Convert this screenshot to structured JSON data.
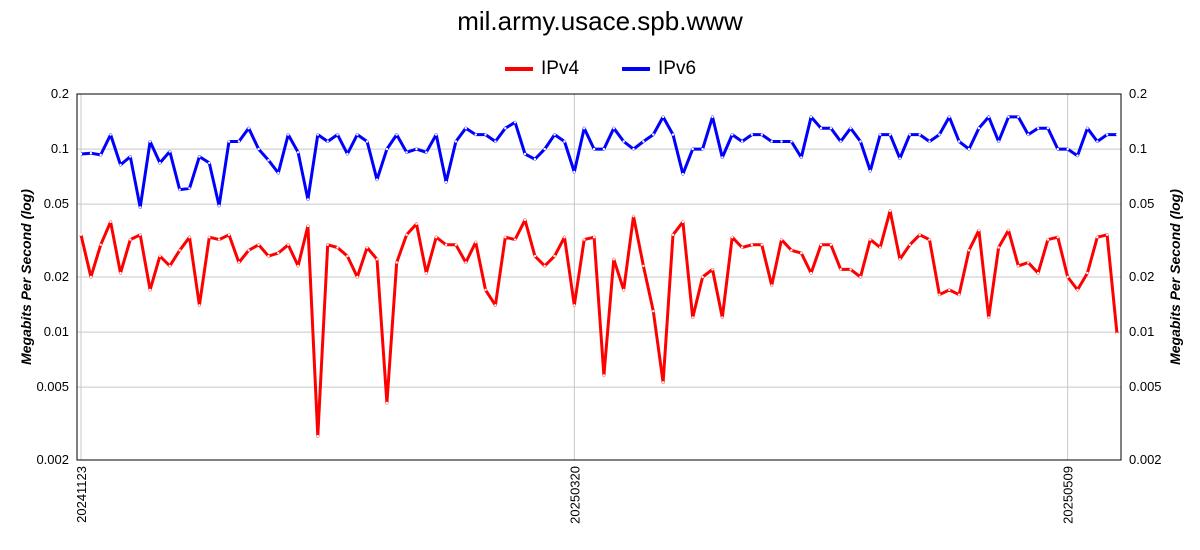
{
  "chart_data": {
    "type": "line",
    "title": "mil.army.usace.spb.www",
    "ylabel": "Megabits Per Second (log)",
    "xlabel": "",
    "yscale": "log",
    "ylim": [
      0.002,
      0.2
    ],
    "yticks": [
      0.002,
      0.005,
      0.01,
      0.02,
      0.05,
      0.1,
      0.2
    ],
    "ytick_labels": [
      "0.002",
      "0.005",
      "0.01",
      "0.02",
      "0.05",
      "0.1",
      "0.2"
    ],
    "xticks": [
      {
        "index": 0,
        "label": "20241123"
      },
      {
        "index": 50,
        "label": "20250320"
      },
      {
        "index": 100,
        "label": "20250509"
      }
    ],
    "grid": true,
    "legend": "top-center",
    "series": [
      {
        "name": "IPv4",
        "color": "#ff0000",
        "values": [
          0.034,
          0.02,
          0.03,
          0.04,
          0.021,
          0.032,
          0.034,
          0.017,
          0.026,
          0.023,
          0.028,
          0.033,
          0.014,
          0.033,
          0.032,
          0.034,
          0.024,
          0.028,
          0.03,
          0.026,
          0.027,
          0.03,
          0.023,
          0.038,
          0.0027,
          0.03,
          0.029,
          0.026,
          0.02,
          0.029,
          0.025,
          0.0041,
          0.024,
          0.034,
          0.039,
          0.021,
          0.033,
          0.03,
          0.03,
          0.024,
          0.031,
          0.017,
          0.014,
          0.033,
          0.032,
          0.041,
          0.026,
          0.023,
          0.026,
          0.033,
          0.014,
          0.032,
          0.033,
          0.0058,
          0.025,
          0.017,
          0.043,
          0.023,
          0.013,
          0.0053,
          0.034,
          0.04,
          0.012,
          0.02,
          0.022,
          0.012,
          0.033,
          0.029,
          0.03,
          0.03,
          0.018,
          0.032,
          0.028,
          0.027,
          0.021,
          0.03,
          0.03,
          0.022,
          0.022,
          0.02,
          0.032,
          0.029,
          0.046,
          0.025,
          0.03,
          0.034,
          0.032,
          0.016,
          0.017,
          0.016,
          0.028,
          0.036,
          0.012,
          0.029,
          0.036,
          0.023,
          0.024,
          0.021,
          0.032,
          0.033,
          0.02,
          0.017,
          0.021,
          0.033,
          0.034,
          0.0098
        ]
      },
      {
        "name": "IPv6",
        "color": "#0000ff",
        "values": [
          0.094,
          0.095,
          0.093,
          0.12,
          0.082,
          0.091,
          0.048,
          0.11,
          0.084,
          0.097,
          0.06,
          0.061,
          0.091,
          0.084,
          0.049,
          0.11,
          0.11,
          0.13,
          0.1,
          0.087,
          0.074,
          0.12,
          0.096,
          0.053,
          0.12,
          0.11,
          0.12,
          0.094,
          0.12,
          0.11,
          0.068,
          0.1,
          0.12,
          0.096,
          0.1,
          0.096,
          0.12,
          0.066,
          0.11,
          0.13,
          0.12,
          0.12,
          0.11,
          0.13,
          0.14,
          0.094,
          0.088,
          0.1,
          0.12,
          0.11,
          0.075,
          0.13,
          0.1,
          0.1,
          0.13,
          0.11,
          0.1,
          0.11,
          0.12,
          0.15,
          0.12,
          0.073,
          0.1,
          0.1,
          0.15,
          0.09,
          0.12,
          0.11,
          0.12,
          0.12,
          0.11,
          0.11,
          0.11,
          0.09,
          0.15,
          0.13,
          0.13,
          0.11,
          0.13,
          0.11,
          0.076,
          0.12,
          0.12,
          0.089,
          0.12,
          0.12,
          0.11,
          0.12,
          0.15,
          0.11,
          0.1,
          0.13,
          0.15,
          0.11,
          0.15,
          0.15,
          0.12,
          0.13,
          0.13,
          0.1,
          0.1,
          0.092,
          0.13,
          0.11,
          0.12,
          0.12
        ]
      }
    ]
  }
}
